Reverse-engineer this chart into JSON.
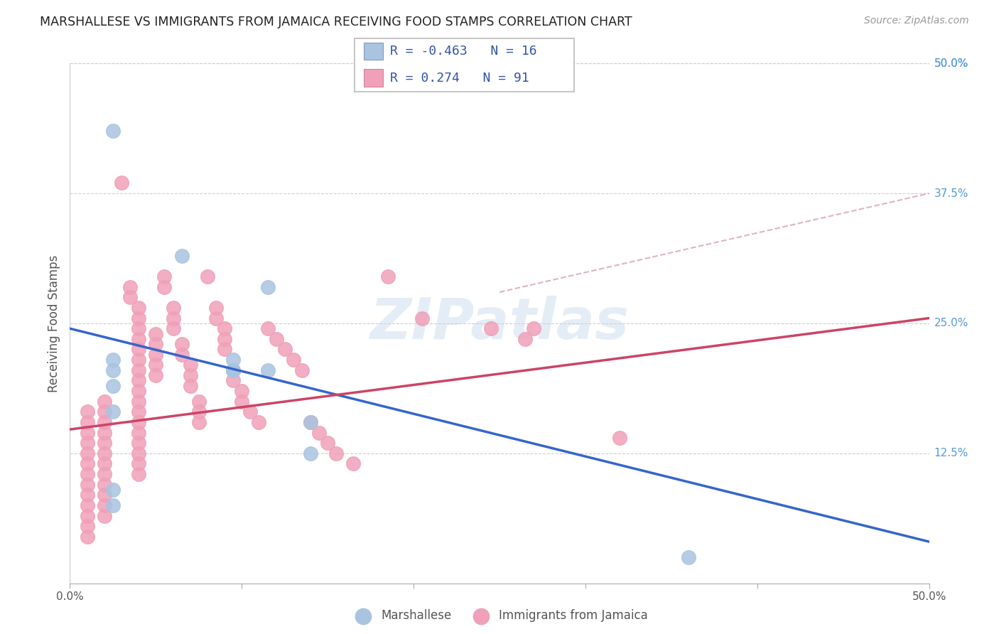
{
  "title": "MARSHALLESE VS IMMIGRANTS FROM JAMAICA RECEIVING FOOD STAMPS CORRELATION CHART",
  "source": "Source: ZipAtlas.com",
  "ylabel": "Receiving Food Stamps",
  "right_yticks": [
    "50.0%",
    "37.5%",
    "25.0%",
    "12.5%"
  ],
  "right_ytick_vals": [
    0.5,
    0.375,
    0.25,
    0.125
  ],
  "xlim": [
    0.0,
    0.5
  ],
  "ylim": [
    0.0,
    0.5
  ],
  "legend_r_blue": "-0.463",
  "legend_n_blue": "16",
  "legend_r_pink": " 0.274",
  "legend_n_pink": "91",
  "watermark": "ZIPatlas",
  "blue_color": "#a8c4e0",
  "pink_color": "#f0a0b8",
  "blue_line_color": "#3366cc",
  "pink_line_color": "#cc4466",
  "pink_dash_color": "#d08090",
  "blue_scatter": [
    [
      0.025,
      0.435
    ],
    [
      0.025,
      0.215
    ],
    [
      0.025,
      0.205
    ],
    [
      0.025,
      0.19
    ],
    [
      0.025,
      0.165
    ],
    [
      0.025,
      0.09
    ],
    [
      0.025,
      0.075
    ],
    [
      0.065,
      0.315
    ],
    [
      0.095,
      0.215
    ],
    [
      0.095,
      0.205
    ],
    [
      0.095,
      0.205
    ],
    [
      0.115,
      0.285
    ],
    [
      0.115,
      0.205
    ],
    [
      0.14,
      0.155
    ],
    [
      0.14,
      0.125
    ],
    [
      0.36,
      0.025
    ]
  ],
  "pink_scatter": [
    [
      0.01,
      0.165
    ],
    [
      0.01,
      0.155
    ],
    [
      0.01,
      0.145
    ],
    [
      0.01,
      0.135
    ],
    [
      0.01,
      0.125
    ],
    [
      0.01,
      0.115
    ],
    [
      0.01,
      0.105
    ],
    [
      0.01,
      0.095
    ],
    [
      0.01,
      0.085
    ],
    [
      0.01,
      0.075
    ],
    [
      0.01,
      0.065
    ],
    [
      0.01,
      0.055
    ],
    [
      0.01,
      0.045
    ],
    [
      0.02,
      0.175
    ],
    [
      0.02,
      0.165
    ],
    [
      0.02,
      0.155
    ],
    [
      0.02,
      0.145
    ],
    [
      0.02,
      0.135
    ],
    [
      0.02,
      0.125
    ],
    [
      0.02,
      0.115
    ],
    [
      0.02,
      0.105
    ],
    [
      0.02,
      0.095
    ],
    [
      0.02,
      0.085
    ],
    [
      0.02,
      0.075
    ],
    [
      0.02,
      0.065
    ],
    [
      0.03,
      0.385
    ],
    [
      0.035,
      0.285
    ],
    [
      0.035,
      0.275
    ],
    [
      0.04,
      0.265
    ],
    [
      0.04,
      0.255
    ],
    [
      0.04,
      0.245
    ],
    [
      0.04,
      0.235
    ],
    [
      0.04,
      0.225
    ],
    [
      0.04,
      0.215
    ],
    [
      0.04,
      0.205
    ],
    [
      0.04,
      0.195
    ],
    [
      0.04,
      0.185
    ],
    [
      0.04,
      0.175
    ],
    [
      0.04,
      0.165
    ],
    [
      0.04,
      0.155
    ],
    [
      0.04,
      0.145
    ],
    [
      0.04,
      0.135
    ],
    [
      0.04,
      0.125
    ],
    [
      0.04,
      0.115
    ],
    [
      0.04,
      0.105
    ],
    [
      0.05,
      0.24
    ],
    [
      0.05,
      0.23
    ],
    [
      0.05,
      0.22
    ],
    [
      0.05,
      0.21
    ],
    [
      0.05,
      0.2
    ],
    [
      0.055,
      0.295
    ],
    [
      0.055,
      0.285
    ],
    [
      0.06,
      0.265
    ],
    [
      0.06,
      0.255
    ],
    [
      0.06,
      0.245
    ],
    [
      0.065,
      0.23
    ],
    [
      0.065,
      0.22
    ],
    [
      0.07,
      0.21
    ],
    [
      0.07,
      0.2
    ],
    [
      0.07,
      0.19
    ],
    [
      0.075,
      0.175
    ],
    [
      0.075,
      0.165
    ],
    [
      0.075,
      0.155
    ],
    [
      0.08,
      0.295
    ],
    [
      0.085,
      0.265
    ],
    [
      0.085,
      0.255
    ],
    [
      0.09,
      0.245
    ],
    [
      0.09,
      0.235
    ],
    [
      0.09,
      0.225
    ],
    [
      0.095,
      0.205
    ],
    [
      0.095,
      0.195
    ],
    [
      0.1,
      0.185
    ],
    [
      0.1,
      0.175
    ],
    [
      0.105,
      0.165
    ],
    [
      0.11,
      0.155
    ],
    [
      0.115,
      0.245
    ],
    [
      0.12,
      0.235
    ],
    [
      0.125,
      0.225
    ],
    [
      0.13,
      0.215
    ],
    [
      0.135,
      0.205
    ],
    [
      0.14,
      0.155
    ],
    [
      0.145,
      0.145
    ],
    [
      0.15,
      0.135
    ],
    [
      0.155,
      0.125
    ],
    [
      0.165,
      0.115
    ],
    [
      0.185,
      0.295
    ],
    [
      0.205,
      0.255
    ],
    [
      0.245,
      0.245
    ],
    [
      0.265,
      0.235
    ],
    [
      0.27,
      0.245
    ],
    [
      0.32,
      0.14
    ]
  ],
  "blue_trendline": [
    [
      0.0,
      0.245
    ],
    [
      0.5,
      0.04
    ]
  ],
  "pink_trendline": [
    [
      0.0,
      0.148
    ],
    [
      0.5,
      0.255
    ]
  ],
  "pink_trendline_dashed": [
    [
      0.25,
      0.28
    ],
    [
      0.5,
      0.375
    ]
  ]
}
